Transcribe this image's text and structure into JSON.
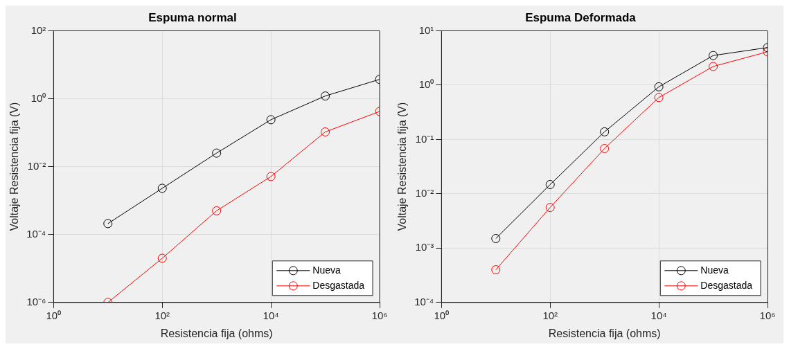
{
  "chart_data": [
    {
      "type": "line",
      "title": "Espuma normal",
      "xlabel": "Resistencia fija (ohms)",
      "ylabel": "Voltaje Resistencia fija (V)",
      "x": [
        10,
        100,
        1000,
        10000,
        100000,
        1000000
      ],
      "series": [
        {
          "name": "Nueva",
          "color": "#000000",
          "values": [
            0.00021,
            0.0023,
            0.025,
            0.24,
            1.2,
            3.7
          ]
        },
        {
          "name": "Desgastada",
          "color": "#ff0000",
          "values": [
            1e-06,
            2e-05,
            0.0005,
            0.0051,
            0.105,
            0.42
          ]
        }
      ],
      "log": "xy",
      "xlim": [
        1,
        1000000
      ],
      "ylim": [
        1e-06,
        100
      ],
      "xticks": [
        {
          "value": 1,
          "label": "10⁰"
        },
        {
          "value": 100,
          "label": "10²"
        },
        {
          "value": 10000,
          "label": "10⁴"
        },
        {
          "value": 1000000,
          "label": "10⁶"
        }
      ],
      "yticks": [
        {
          "value": 1e-06,
          "label": "10⁻⁶"
        },
        {
          "value": 0.0001,
          "label": "10⁻⁴"
        },
        {
          "value": 0.01,
          "label": "10⁻²"
        },
        {
          "value": 1,
          "label": "10⁰"
        },
        {
          "value": 100,
          "label": "10²"
        }
      ],
      "grid": true,
      "legend": "bottom right",
      "marker": "circle",
      "line_style": "solid"
    },
    {
      "type": "line",
      "title": "Espuma Deformada",
      "xlabel": "Resistencia fija (ohms)",
      "ylabel": "Voltaje Resistencia fija (V)",
      "x": [
        10,
        100,
        1000,
        10000,
        100000,
        1000000
      ],
      "series": [
        {
          "name": "Nueva",
          "color": "#000000",
          "values": [
            0.0015,
            0.0148,
            0.138,
            0.93,
            3.5,
            4.9
          ]
        },
        {
          "name": "Desgastada",
          "color": "#ff0000",
          "values": [
            0.0004,
            0.0056,
            0.068,
            0.59,
            2.2,
            4.1
          ]
        }
      ],
      "log": "xy",
      "xlim": [
        1,
        1000000
      ],
      "ylim": [
        0.0001,
        10
      ],
      "xticks": [
        {
          "value": 1,
          "label": "10⁰"
        },
        {
          "value": 100,
          "label": "10²"
        },
        {
          "value": 10000,
          "label": "10⁴"
        },
        {
          "value": 1000000,
          "label": "10⁶"
        }
      ],
      "yticks": [
        {
          "value": 0.0001,
          "label": "10⁻⁴"
        },
        {
          "value": 0.001,
          "label": "10⁻³"
        },
        {
          "value": 0.01,
          "label": "10⁻²"
        },
        {
          "value": 0.1,
          "label": "10⁻¹"
        },
        {
          "value": 1,
          "label": "10⁰"
        },
        {
          "value": 10,
          "label": "10¹"
        }
      ],
      "grid": true,
      "legend": "bottom right",
      "marker": "circle",
      "line_style": "solid"
    }
  ]
}
